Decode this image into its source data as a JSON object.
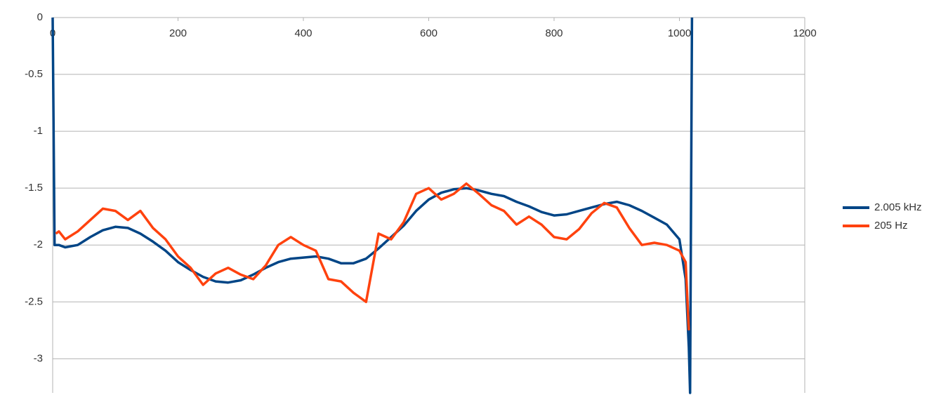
{
  "chart_data": {
    "type": "line",
    "x": [
      0,
      3,
      5,
      10,
      20,
      40,
      60,
      80,
      100,
      120,
      140,
      160,
      180,
      200,
      220,
      240,
      260,
      280,
      300,
      320,
      340,
      360,
      380,
      400,
      420,
      440,
      460,
      480,
      500,
      520,
      540,
      560,
      580,
      600,
      620,
      640,
      660,
      680,
      700,
      720,
      740,
      760,
      780,
      800,
      820,
      840,
      860,
      880,
      900,
      920,
      940,
      960,
      980,
      1000,
      1010,
      1015,
      1017,
      1020
    ],
    "series": [
      {
        "name": "2.005 kHz",
        "color": "#004586",
        "values": [
          0,
          -2.0,
          -2.0,
          -2.0,
          -2.02,
          -2.0,
          -1.93,
          -1.87,
          -1.84,
          -1.85,
          -1.9,
          -1.97,
          -2.05,
          -2.15,
          -2.22,
          -2.28,
          -2.32,
          -2.33,
          -2.31,
          -2.26,
          -2.2,
          -2.15,
          -2.12,
          -2.11,
          -2.1,
          -2.12,
          -2.16,
          -2.16,
          -2.12,
          -2.03,
          -1.93,
          -1.83,
          -1.7,
          -1.6,
          -1.54,
          -1.51,
          -1.5,
          -1.52,
          -1.55,
          -1.57,
          -1.62,
          -1.66,
          -1.71,
          -1.74,
          -1.73,
          -1.7,
          -1.67,
          -1.64,
          -1.62,
          -1.65,
          -1.7,
          -1.76,
          -1.82,
          -1.95,
          -2.3,
          -2.9,
          -3.3,
          0
        ]
      },
      {
        "name": "205 Hz",
        "color": "#ff420e",
        "values": [
          null,
          null,
          -1.9,
          -1.88,
          -1.95,
          -1.88,
          -1.78,
          -1.68,
          -1.7,
          -1.78,
          -1.7,
          -1.85,
          -1.95,
          -2.1,
          -2.2,
          -2.35,
          -2.25,
          -2.2,
          -2.26,
          -2.3,
          -2.18,
          -2.0,
          -1.93,
          -2.0,
          -2.05,
          -2.3,
          -2.32,
          -2.42,
          -2.5,
          -1.9,
          -1.95,
          -1.8,
          -1.55,
          -1.5,
          -1.6,
          -1.55,
          -1.46,
          -1.55,
          -1.65,
          -1.7,
          -1.82,
          -1.75,
          -1.82,
          -1.93,
          -1.95,
          -1.86,
          -1.72,
          -1.63,
          -1.67,
          -1.85,
          -2.0,
          -1.98,
          -2.0,
          -2.05,
          -2.15,
          -2.75,
          null,
          null
        ]
      }
    ],
    "xlim": [
      0,
      1200
    ],
    "ylim": [
      -3.3,
      0
    ],
    "xticks": [
      0,
      200,
      400,
      600,
      800,
      1000,
      1200
    ],
    "yticks": [
      0,
      -0.5,
      -1,
      -1.5,
      -2,
      -2.5,
      -3
    ],
    "grid": true,
    "legend": "right"
  }
}
